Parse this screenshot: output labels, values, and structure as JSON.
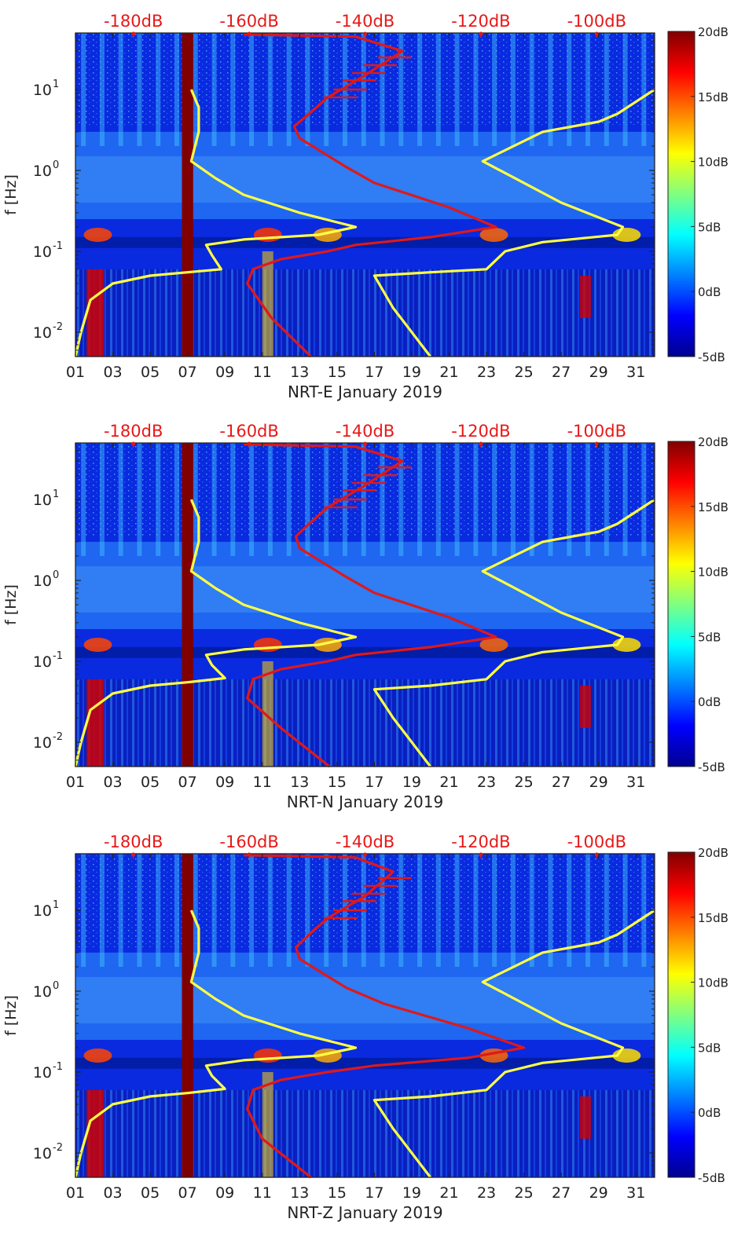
{
  "figure": {
    "colorbar_ticks": [
      "20dB",
      "15dB",
      "10dB",
      "5dB",
      "0dB",
      "-5dB"
    ],
    "colorbar_colors": [
      "#800000",
      "#ff0000",
      "#ff8000",
      "#ffff00",
      "#80ff80",
      "#00ffff",
      "#0080ff",
      "#0000ff",
      "#00008f"
    ],
    "top_axis_ticks": [
      "-180dB",
      "-160dB",
      "-140dB",
      "-120dB",
      "-100dB"
    ],
    "x_ticks": [
      "01",
      "03",
      "05",
      "07",
      "09",
      "11",
      "13",
      "15",
      "17",
      "19",
      "21",
      "23",
      "25",
      "27",
      "29",
      "31"
    ],
    "y_ticks": [
      {
        "base": "10",
        "exp": "1"
      },
      {
        "base": "10",
        "exp": "0"
      },
      {
        "base": "10",
        "exp": "-1"
      },
      {
        "base": "10",
        "exp": "-2"
      }
    ],
    "ylabel": "f [Hz]"
  },
  "chart_data": [
    {
      "type": "heatmap",
      "title": "",
      "xlabel": "NRT-E January 2019",
      "ylabel": "f [Hz]",
      "x_range_day": [
        1,
        32
      ],
      "y_range_hz": [
        0.005,
        50
      ],
      "y_scale": "log",
      "color_range_db": [
        -5,
        20
      ],
      "top_axis_range_db": [
        -190,
        -90
      ],
      "series": [
        {
          "color": "#ffff44",
          "points": [
            [
              1.0,
              0.005
            ],
            [
              1.3,
              0.01
            ],
            [
              1.8,
              0.025
            ],
            [
              3.0,
              0.04
            ],
            [
              5.0,
              0.05
            ],
            [
              7.0,
              0.055
            ],
            [
              8.8,
              0.06
            ],
            [
              8.3,
              0.09
            ],
            [
              8.0,
              0.12
            ],
            [
              10.0,
              0.14
            ],
            [
              14.0,
              0.16
            ],
            [
              16.0,
              0.2
            ],
            [
              13.0,
              0.3
            ],
            [
              10.0,
              0.5
            ],
            [
              8.5,
              0.8
            ],
            [
              7.2,
              1.3
            ],
            [
              7.4,
              2.0
            ],
            [
              7.6,
              3.0
            ],
            [
              7.6,
              6.0
            ],
            [
              7.2,
              10.0
            ]
          ]
        },
        {
          "color": "#ffff44",
          "points": [
            [
              20.0,
              0.005
            ],
            [
              18.0,
              0.02
            ],
            [
              17.0,
              0.05
            ],
            [
              20.0,
              0.055
            ],
            [
              23.0,
              0.06
            ],
            [
              24.0,
              0.1
            ],
            [
              26.0,
              0.13
            ],
            [
              30.0,
              0.16
            ],
            [
              30.3,
              0.2
            ],
            [
              27.0,
              0.4
            ],
            [
              22.8,
              1.3
            ],
            [
              26.0,
              3.0
            ],
            [
              29.0,
              4.0
            ],
            [
              30.0,
              5.0
            ],
            [
              32.0,
              10.0
            ]
          ]
        },
        {
          "color": "#e01818",
          "points": [
            [
              13.6,
              0.005
            ],
            [
              11.5,
              0.015
            ],
            [
              10.2,
              0.04
            ],
            [
              10.5,
              0.06
            ],
            [
              12.0,
              0.08
            ],
            [
              14.5,
              0.1
            ],
            [
              16.0,
              0.12
            ],
            [
              20.0,
              0.15
            ],
            [
              23.5,
              0.2
            ],
            [
              21.0,
              0.35
            ],
            [
              17.0,
              0.7
            ],
            [
              15.5,
              1.1
            ],
            [
              13.0,
              2.5
            ],
            [
              12.7,
              3.5
            ],
            [
              13.5,
              5.0
            ],
            [
              14.5,
              8.0
            ],
            [
              16.5,
              15.0
            ],
            [
              18.5,
              30.0
            ],
            [
              16.0,
              45.0
            ],
            [
              10.0,
              48.0
            ]
          ]
        }
      ]
    },
    {
      "type": "heatmap",
      "title": "",
      "xlabel": "NRT-N January 2019",
      "ylabel": "f [Hz]",
      "x_range_day": [
        1,
        32
      ],
      "y_range_hz": [
        0.005,
        50
      ],
      "y_scale": "log",
      "color_range_db": [
        -5,
        20
      ],
      "top_axis_range_db": [
        -190,
        -90
      ],
      "series": [
        {
          "color": "#ffff44",
          "points": [
            [
              1.0,
              0.005
            ],
            [
              1.3,
              0.01
            ],
            [
              1.8,
              0.025
            ],
            [
              3.0,
              0.04
            ],
            [
              5.0,
              0.05
            ],
            [
              7.0,
              0.055
            ],
            [
              9.0,
              0.062
            ],
            [
              8.3,
              0.09
            ],
            [
              8.0,
              0.12
            ],
            [
              10.0,
              0.14
            ],
            [
              14.0,
              0.16
            ],
            [
              16.0,
              0.2
            ],
            [
              13.0,
              0.3
            ],
            [
              10.0,
              0.5
            ],
            [
              8.5,
              0.8
            ],
            [
              7.2,
              1.3
            ],
            [
              7.4,
              2.0
            ],
            [
              7.6,
              3.0
            ],
            [
              7.6,
              6.0
            ],
            [
              7.2,
              10.0
            ]
          ]
        },
        {
          "color": "#ffff44",
          "points": [
            [
              20.0,
              0.005
            ],
            [
              18.0,
              0.02
            ],
            [
              17.0,
              0.045
            ],
            [
              20.0,
              0.05
            ],
            [
              23.0,
              0.06
            ],
            [
              24.0,
              0.1
            ],
            [
              26.0,
              0.13
            ],
            [
              30.0,
              0.16
            ],
            [
              30.3,
              0.2
            ],
            [
              27.0,
              0.4
            ],
            [
              22.8,
              1.3
            ],
            [
              26.0,
              3.0
            ],
            [
              29.0,
              4.0
            ],
            [
              30.0,
              5.0
            ],
            [
              32.0,
              10.0
            ]
          ]
        },
        {
          "color": "#e01818",
          "points": [
            [
              14.6,
              0.005
            ],
            [
              12.0,
              0.015
            ],
            [
              10.2,
              0.035
            ],
            [
              10.5,
              0.06
            ],
            [
              12.0,
              0.08
            ],
            [
              14.5,
              0.1
            ],
            [
              16.0,
              0.12
            ],
            [
              20.0,
              0.15
            ],
            [
              23.5,
              0.2
            ],
            [
              21.0,
              0.35
            ],
            [
              17.0,
              0.7
            ],
            [
              15.5,
              1.1
            ],
            [
              13.0,
              2.5
            ],
            [
              12.8,
              3.5
            ],
            [
              13.5,
              5.0
            ],
            [
              14.5,
              8.0
            ],
            [
              16.5,
              15.0
            ],
            [
              18.5,
              30.0
            ],
            [
              16.0,
              45.0
            ],
            [
              10.0,
              48.0
            ]
          ]
        }
      ]
    },
    {
      "type": "heatmap",
      "title": "",
      "xlabel": "NRT-Z January 2019",
      "ylabel": "f [Hz]",
      "x_range_day": [
        1,
        32
      ],
      "y_range_hz": [
        0.005,
        50
      ],
      "y_scale": "log",
      "color_range_db": [
        -5,
        20
      ],
      "top_axis_range_db": [
        -190,
        -90
      ],
      "series": [
        {
          "color": "#ffff44",
          "points": [
            [
              1.0,
              0.005
            ],
            [
              1.3,
              0.01
            ],
            [
              1.8,
              0.025
            ],
            [
              3.0,
              0.04
            ],
            [
              5.0,
              0.05
            ],
            [
              7.0,
              0.055
            ],
            [
              9.0,
              0.062
            ],
            [
              8.3,
              0.09
            ],
            [
              8.0,
              0.12
            ],
            [
              10.0,
              0.14
            ],
            [
              14.0,
              0.16
            ],
            [
              16.0,
              0.2
            ],
            [
              13.0,
              0.3
            ],
            [
              10.0,
              0.5
            ],
            [
              8.5,
              0.8
            ],
            [
              7.2,
              1.3
            ],
            [
              7.4,
              2.0
            ],
            [
              7.6,
              3.0
            ],
            [
              7.6,
              6.0
            ],
            [
              7.2,
              10.0
            ]
          ]
        },
        {
          "color": "#ffff44",
          "points": [
            [
              20.0,
              0.005
            ],
            [
              18.0,
              0.02
            ],
            [
              17.0,
              0.045
            ],
            [
              20.0,
              0.05
            ],
            [
              23.0,
              0.06
            ],
            [
              24.0,
              0.1
            ],
            [
              26.0,
              0.13
            ],
            [
              30.0,
              0.16
            ],
            [
              30.3,
              0.2
            ],
            [
              27.0,
              0.4
            ],
            [
              22.8,
              1.3
            ],
            [
              26.0,
              3.0
            ],
            [
              29.0,
              4.0
            ],
            [
              30.0,
              5.0
            ],
            [
              32.0,
              10.0
            ]
          ]
        },
        {
          "color": "#e01818",
          "points": [
            [
              13.6,
              0.005
            ],
            [
              11.0,
              0.015
            ],
            [
              10.2,
              0.035
            ],
            [
              10.5,
              0.06
            ],
            [
              12.0,
              0.08
            ],
            [
              14.5,
              0.1
            ],
            [
              17.0,
              0.12
            ],
            [
              22.0,
              0.15
            ],
            [
              25.0,
              0.2
            ],
            [
              22.0,
              0.35
            ],
            [
              17.5,
              0.7
            ],
            [
              15.5,
              1.1
            ],
            [
              13.0,
              2.5
            ],
            [
              12.8,
              3.5
            ],
            [
              13.5,
              5.0
            ],
            [
              14.5,
              8.0
            ],
            [
              16.5,
              15.0
            ],
            [
              18.0,
              30.0
            ],
            [
              16.0,
              45.0
            ],
            [
              10.0,
              48.0
            ]
          ]
        }
      ]
    }
  ]
}
